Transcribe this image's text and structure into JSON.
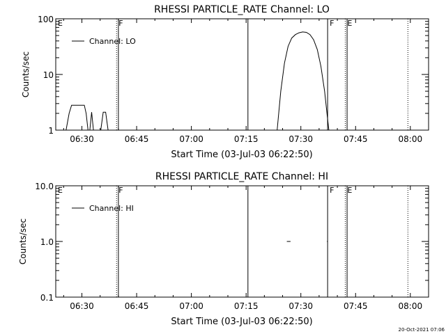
{
  "footer_timestamp": "20-Oct-2021 07:06",
  "chart_data": [
    {
      "type": "line",
      "title": "RHESSI PARTICLE_RATE Channel: LO",
      "xlabel": "Start Time (03-Jul-03 06:22:50)",
      "ylabel": "Counts/sec",
      "y_scale": "log",
      "xlim": [
        "06:22:50",
        "08:05:00"
      ],
      "ylim": [
        1,
        100
      ],
      "x_tick_labels": [
        "06:30",
        "06:45",
        "07:00",
        "07:15",
        "07:30",
        "07:45",
        "08:00"
      ],
      "y_tick_labels": [
        "1",
        "10",
        "100"
      ],
      "legend": {
        "position": "top-left",
        "entries": [
          "Channel: LO"
        ]
      },
      "markers": [
        {
          "time": "06:22:50",
          "style": "edge",
          "label": "E"
        },
        {
          "time": "06:39:30",
          "style": "dotted",
          "label": "F"
        },
        {
          "time": "06:40:00",
          "style": "solid",
          "label": ""
        },
        {
          "time": "07:15:30",
          "style": "solid",
          "label": ""
        },
        {
          "time": "07:37:20",
          "style": "solid",
          "label": "F"
        },
        {
          "time": "07:42:10",
          "style": "dotted",
          "label": "E"
        },
        {
          "time": "07:42:40",
          "style": "solid",
          "label": ""
        },
        {
          "time": "07:59:20",
          "style": "dotted",
          "label": ""
        }
      ],
      "series": [
        {
          "name": "Channel: LO",
          "segments": [
            [
              [
                "06:25:40",
                1
              ],
              [
                "06:26:30",
                2
              ],
              [
                "06:27:10",
                2.8
              ],
              [
                "06:30:40",
                2.8
              ],
              [
                "06:31:10",
                2
              ],
              [
                "06:31:40",
                1
              ]
            ],
            [
              [
                "06:32:10",
                1
              ],
              [
                "06:32:40",
                2.1
              ],
              [
                "06:33:10",
                1
              ]
            ],
            [
              [
                "06:35:10",
                1
              ],
              [
                "06:35:50",
                2.1
              ],
              [
                "06:36:30",
                2.1
              ],
              [
                "06:37:10",
                1
              ]
            ],
            [
              [
                "07:23:30",
                1
              ],
              [
                "07:24:30",
                5
              ],
              [
                "07:25:30",
                16
              ],
              [
                "07:26:30",
                32
              ],
              [
                "07:27:30",
                45
              ],
              [
                "07:28:30",
                52
              ],
              [
                "07:29:30",
                56
              ],
              [
                "07:30:30",
                58
              ],
              [
                "07:31:30",
                57
              ],
              [
                "07:32:30",
                52
              ],
              [
                "07:33:30",
                42
              ],
              [
                "07:34:30",
                28
              ],
              [
                "07:35:30",
                14
              ],
              [
                "07:36:30",
                5
              ],
              [
                "07:37:10",
                2
              ],
              [
                "07:37:40",
                1
              ]
            ]
          ]
        }
      ]
    },
    {
      "type": "line",
      "title": "RHESSI PARTICLE_RATE Channel: HI",
      "xlabel": "Start Time (03-Jul-03 06:22:50)",
      "ylabel": "Counts/sec",
      "y_scale": "log",
      "xlim": [
        "06:22:50",
        "08:05:00"
      ],
      "ylim": [
        0.1,
        10
      ],
      "x_tick_labels": [
        "06:30",
        "06:45",
        "07:00",
        "07:15",
        "07:30",
        "07:45",
        "08:00"
      ],
      "y_tick_labels": [
        "0.1",
        "1.0",
        "10.0"
      ],
      "legend": {
        "position": "top-left",
        "entries": [
          "Channel: HI"
        ]
      },
      "markers": [
        {
          "time": "06:22:50",
          "style": "edge",
          "label": "E"
        },
        {
          "time": "06:39:30",
          "style": "dotted",
          "label": "F"
        },
        {
          "time": "06:40:00",
          "style": "solid",
          "label": ""
        },
        {
          "time": "07:15:30",
          "style": "solid",
          "label": ""
        },
        {
          "time": "07:37:20",
          "style": "solid",
          "label": "F"
        },
        {
          "time": "07:42:10",
          "style": "dotted",
          "label": "E"
        },
        {
          "time": "07:42:40",
          "style": "solid",
          "label": ""
        },
        {
          "time": "07:59:20",
          "style": "dotted",
          "label": ""
        }
      ],
      "series": [
        {
          "name": "Channel: HI",
          "segments": [
            [
              [
                "07:26:10",
                1
              ],
              [
                "07:27:10",
                1
              ]
            ],
            [
              [
                "07:37:10",
                1
              ],
              [
                "07:37:20",
                1
              ]
            ]
          ]
        }
      ]
    }
  ]
}
